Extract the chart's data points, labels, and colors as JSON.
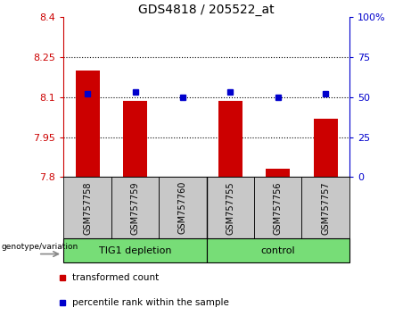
{
  "title": "GDS4818 / 205522_at",
  "samples": [
    "GSM757758",
    "GSM757759",
    "GSM757760",
    "GSM757755",
    "GSM757756",
    "GSM757757"
  ],
  "red_values": [
    8.2,
    8.085,
    7.802,
    8.085,
    7.832,
    8.02
  ],
  "blue_values": [
    52,
    53,
    50,
    53,
    50,
    52
  ],
  "ylim_left": [
    7.8,
    8.4
  ],
  "ylim_right": [
    0,
    100
  ],
  "yticks_left": [
    7.8,
    7.95,
    8.1,
    8.25,
    8.4
  ],
  "ytick_labels_left": [
    "7.8",
    "7.95",
    "8.1",
    "8.25",
    "8.4"
  ],
  "yticks_right": [
    0,
    25,
    50,
    75,
    100
  ],
  "ytick_labels_right": [
    "0",
    "25",
    "50",
    "75",
    "100%"
  ],
  "bar_width": 0.5,
  "bar_bottom": 7.8,
  "red_color": "#CC0000",
  "blue_color": "#0000CC",
  "legend_red": "transformed count",
  "legend_blue": "percentile rank within the sample",
  "group1_label": "TIG1 depletion",
  "group2_label": "control",
  "group_color": "#77DD77",
  "sample_box_color": "#C8C8C8",
  "geno_label": "genotype/variation"
}
